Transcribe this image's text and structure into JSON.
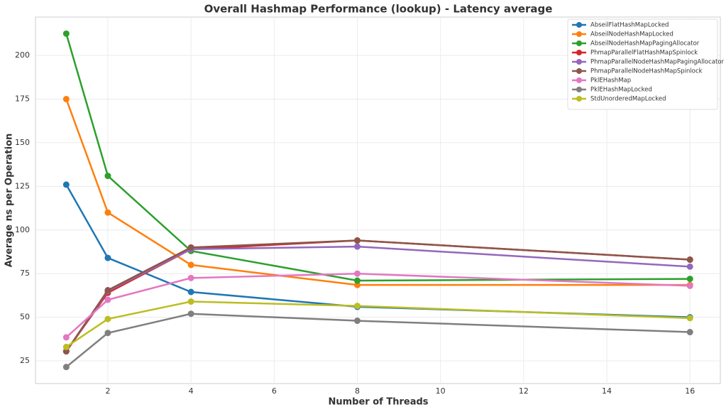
{
  "chart_data": {
    "type": "line",
    "title": "Overall Hashmap Performance (lookup) - Latency average",
    "x_label": "Number of Threads",
    "y_label": "Average ns per Operation",
    "x": [
      1,
      2,
      4,
      8,
      16
    ],
    "xlim": [
      0.26,
      16.73
    ],
    "xticks": [
      2,
      4,
      6,
      8,
      10,
      12,
      14,
      16
    ],
    "ylim": [
      12,
      222
    ],
    "yticks": [
      25,
      50,
      75,
      100,
      125,
      150,
      175,
      200
    ],
    "grid": true,
    "legend": "upper right",
    "series": [
      {
        "name": "AbseilFlatHashMapLocked",
        "color": "#1f77b4",
        "values": [
          126,
          84,
          64.5,
          56,
          50
        ]
      },
      {
        "name": "AbseilNodeHashMapLocked",
        "color": "#ff7f0e",
        "values": [
          175,
          110,
          80,
          68.5,
          68.5
        ]
      },
      {
        "name": "AbseilNodeHashMapPagingAllocator",
        "color": "#2ca02c",
        "values": [
          212.5,
          131,
          88,
          71,
          72
        ]
      },
      {
        "name": "PhmapParallelFlatHashMapSpinlock",
        "color": "#d62728",
        "values": [
          30.5,
          64,
          89,
          94,
          83
        ]
      },
      {
        "name": "PhmapParallelNodeHashMapPagingAllocator",
        "color": "#9467bd",
        "values": [
          30.5,
          65,
          89,
          90.5,
          79
        ]
      },
      {
        "name": "PhmapParallelNodeHashMapSpinlock",
        "color": "#8c564b",
        "values": [
          30.5,
          65.5,
          90,
          94,
          83
        ]
      },
      {
        "name": "PklEHashMap",
        "color": "#e377c2",
        "values": [
          38.5,
          60,
          72.5,
          75,
          68
        ]
      },
      {
        "name": "PklEHashMapLocked",
        "color": "#7f7f7f",
        "values": [
          21.5,
          41,
          52,
          48,
          41.5
        ]
      },
      {
        "name": "StdUnorderedMapLocked",
        "color": "#bcbd22",
        "values": [
          33,
          49,
          59,
          56.5,
          49.5
        ]
      }
    ]
  }
}
